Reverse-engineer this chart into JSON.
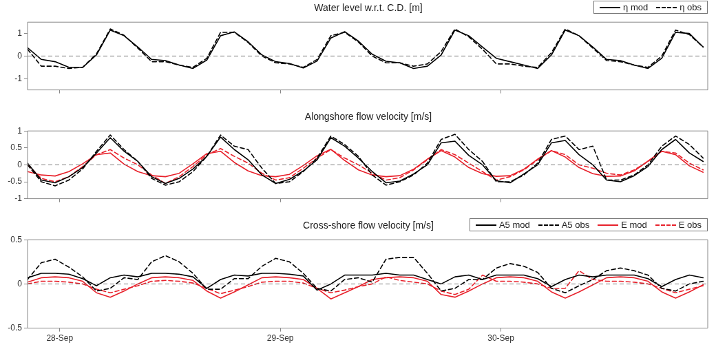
{
  "chart_data": [
    {
      "type": "line",
      "title": "Water level w.r.t. C.D. [m]",
      "legend": "top right",
      "tick_labels": "y",
      "x": [
        "--09-27T20:30",
        "--09-27T22:00",
        "--09-27T23:30",
        "--09-28T01:00",
        "--09-28T02:30",
        "--09-28T04:00",
        "--09-28T05:30",
        "--09-28T07:00",
        "--09-28T08:30",
        "--09-28T10:00",
        "--09-28T11:30",
        "--09-28T13:00",
        "--09-28T14:30",
        "--09-28T16:00",
        "--09-28T17:30",
        "--09-28T19:00",
        "--09-28T20:30",
        "--09-28T22:00",
        "--09-28T23:30",
        "--09-29T01:00",
        "--09-29T02:30",
        "--09-29T04:00",
        "--09-29T05:30",
        "--09-29T07:00",
        "--09-29T08:30",
        "--09-29T10:00",
        "--09-29T11:30",
        "--09-29T13:00",
        "--09-29T14:30",
        "--09-29T16:00",
        "--09-29T17:30",
        "--09-29T19:00",
        "--09-29T20:30",
        "--09-29T22:00",
        "--09-29T23:30",
        "--09-30T01:00",
        "--09-30T02:30",
        "--09-30T04:00",
        "--09-30T05:30",
        "--09-30T07:00",
        "--09-30T08:30",
        "--09-30T10:00",
        "--09-30T11:30",
        "--09-30T13:00",
        "--09-30T14:30",
        "--09-30T16:00",
        "--09-30T17:30",
        "--09-30T19:00",
        "--09-30T20:30",
        "--09-30T22:00"
      ],
      "xlim": [
        "--09-27T20:30",
        "--09-30T22:30"
      ],
      "xticks": [
        {
          "value": "--09-28",
          "label": null
        },
        {
          "value": "--09-29",
          "label": null
        },
        {
          "value": "--09-30",
          "label": null
        }
      ],
      "ylim": [
        -1.5,
        1.5
      ],
      "yticks": [
        -1,
        0,
        1
      ],
      "ref_lines": [
        {
          "axis": "y",
          "value": 0,
          "color": "#808080",
          "line_style": "dashed"
        }
      ],
      "series": [
        {
          "name": "η mod",
          "color": "#000000",
          "line_style": "solid",
          "values": [
            0.37,
            -0.15,
            -0.25,
            -0.5,
            -0.5,
            0.05,
            1.15,
            0.9,
            0.4,
            -0.15,
            -0.2,
            -0.4,
            -0.55,
            -0.18,
            0.9,
            1.07,
            0.63,
            0.05,
            -0.25,
            -0.33,
            -0.53,
            -0.22,
            0.8,
            1.08,
            0.66,
            0.08,
            -0.23,
            -0.3,
            -0.55,
            -0.45,
            0.05,
            1.15,
            0.9,
            0.4,
            -0.1,
            -0.25,
            -0.4,
            -0.55,
            0.05,
            1.15,
            0.9,
            0.4,
            -0.15,
            -0.2,
            -0.4,
            -0.55,
            -0.1,
            1.05,
            1.0,
            0.4
          ]
        },
        {
          "name": "η obs",
          "color": "#000000",
          "line_style": "dashed",
          "values": [
            0.3,
            -0.45,
            -0.45,
            -0.55,
            -0.5,
            0.1,
            1.2,
            0.92,
            0.35,
            -0.25,
            -0.25,
            -0.4,
            -0.5,
            -0.1,
            1.05,
            1.05,
            0.6,
            0.0,
            -0.3,
            -0.35,
            -0.5,
            -0.15,
            0.9,
            1.05,
            0.62,
            0.0,
            -0.3,
            -0.3,
            -0.45,
            -0.35,
            0.2,
            1.2,
            0.85,
            0.3,
            -0.35,
            -0.35,
            -0.45,
            -0.5,
            0.15,
            1.2,
            0.9,
            0.35,
            -0.2,
            -0.25,
            -0.4,
            -0.5,
            0.0,
            1.15,
            0.95,
            0.4
          ]
        }
      ]
    },
    {
      "type": "line",
      "title": "Alongshore flow velocity [m/s]",
      "tick_labels": "y",
      "x": [
        "--09-27T20:30",
        "--09-27T22:00",
        "--09-27T23:30",
        "--09-28T01:00",
        "--09-28T02:30",
        "--09-28T04:00",
        "--09-28T05:30",
        "--09-28T07:00",
        "--09-28T08:30",
        "--09-28T10:00",
        "--09-28T11:30",
        "--09-28T13:00",
        "--09-28T14:30",
        "--09-28T16:00",
        "--09-28T17:30",
        "--09-28T19:00",
        "--09-28T20:30",
        "--09-28T22:00",
        "--09-28T23:30",
        "--09-29T01:00",
        "--09-29T02:30",
        "--09-29T04:00",
        "--09-29T05:30",
        "--09-29T07:00",
        "--09-29T08:30",
        "--09-29T10:00",
        "--09-29T11:30",
        "--09-29T13:00",
        "--09-29T14:30",
        "--09-29T16:00",
        "--09-29T17:30",
        "--09-29T19:00",
        "--09-29T20:30",
        "--09-29T22:00",
        "--09-29T23:30",
        "--09-30T01:00",
        "--09-30T02:30",
        "--09-30T04:00",
        "--09-30T05:30",
        "--09-30T07:00",
        "--09-30T08:30",
        "--09-30T10:00",
        "--09-30T11:30",
        "--09-30T13:00",
        "--09-30T14:30",
        "--09-30T16:00",
        "--09-30T17:30",
        "--09-30T19:00",
        "--09-30T20:30",
        "--09-30T22:00"
      ],
      "xlim": [
        "--09-27T20:30",
        "--09-30T22:30"
      ],
      "xticks": [
        {
          "value": "--09-28",
          "label": null
        },
        {
          "value": "--09-29",
          "label": null
        },
        {
          "value": "--09-30",
          "label": null
        }
      ],
      "ylim": [
        -1,
        1
      ],
      "yticks": [
        -1,
        -0.5,
        0,
        0.5,
        1
      ],
      "ref_lines": [
        {
          "axis": "y",
          "value": 0,
          "color": "#808080",
          "line_style": "dashed"
        }
      ],
      "series": [
        {
          "color": "#000000",
          "line_style": "solid",
          "values": [
            0.05,
            -0.45,
            -0.53,
            -0.35,
            -0.08,
            0.35,
            0.8,
            0.4,
            0.1,
            -0.35,
            -0.55,
            -0.4,
            -0.12,
            0.25,
            0.82,
            0.45,
            0.15,
            -0.3,
            -0.55,
            -0.43,
            -0.18,
            0.15,
            0.8,
            0.55,
            0.2,
            -0.2,
            -0.53,
            -0.48,
            -0.27,
            0,
            0.65,
            0.7,
            0.28,
            0,
            -0.47,
            -0.53,
            -0.27,
            0,
            0.65,
            0.72,
            0.3,
            0,
            -0.45,
            -0.5,
            -0.32,
            -0.05,
            0.45,
            0.75,
            0.35,
            0.1
          ]
        },
        {
          "color": "#000000",
          "line_style": "dashed",
          "values": [
            0.0,
            -0.5,
            -0.62,
            -0.45,
            -0.12,
            0.4,
            0.88,
            0.45,
            0.1,
            -0.4,
            -0.6,
            -0.5,
            -0.2,
            0.25,
            0.88,
            0.55,
            0.45,
            -0.1,
            -0.55,
            -0.5,
            -0.2,
            0.2,
            0.85,
            0.6,
            0.25,
            -0.3,
            -0.6,
            -0.5,
            -0.3,
            0.05,
            0.75,
            0.9,
            0.45,
            0.1,
            -0.5,
            -0.5,
            -0.3,
            0.05,
            0.75,
            0.85,
            0.45,
            0.55,
            -0.45,
            -0.45,
            -0.3,
            0.0,
            0.55,
            0.85,
            0.6,
            0.2
          ]
        },
        {
          "color": "#e8212b",
          "line_style": "solid",
          "values": [
            -0.2,
            -0.3,
            -0.33,
            -0.2,
            0.03,
            0.3,
            0.35,
            0.02,
            -0.2,
            -0.32,
            -0.35,
            -0.25,
            0.03,
            0.33,
            0.4,
            0.07,
            -0.18,
            -0.32,
            -0.35,
            -0.28,
            -0.02,
            0.27,
            0.46,
            0.13,
            -0.15,
            -0.3,
            -0.35,
            -0.32,
            -0.13,
            0.17,
            0.42,
            0.23,
            -0.08,
            -0.26,
            -0.34,
            -0.32,
            -0.13,
            0.17,
            0.42,
            0.23,
            -0.08,
            -0.26,
            -0.34,
            -0.33,
            -0.18,
            0.11,
            0.4,
            0.3,
            -0.03,
            -0.22
          ]
        },
        {
          "color": "#e8212b",
          "line_style": "dashed",
          "values": [
            0.0,
            -0.4,
            -0.5,
            -0.35,
            -0.05,
            0.3,
            0.45,
            0.2,
            0.0,
            -0.3,
            -0.55,
            -0.35,
            -0.05,
            0.3,
            0.48,
            0.25,
            0.05,
            -0.25,
            -0.45,
            -0.38,
            -0.1,
            0.2,
            0.45,
            0.2,
            0.0,
            -0.25,
            -0.45,
            -0.38,
            -0.15,
            0.15,
            0.45,
            0.3,
            0.05,
            -0.2,
            -0.45,
            -0.35,
            -0.15,
            0.15,
            0.42,
            0.3,
            0.0,
            -0.1,
            -0.25,
            -0.3,
            -0.15,
            0.1,
            0.4,
            0.35,
            0.05,
            -0.15
          ]
        }
      ]
    },
    {
      "type": "line",
      "title": "Cross-shore flow velocity [m/s]",
      "legend": "top right",
      "x": [
        "--09-27T20:30",
        "--09-27T22:00",
        "--09-27T23:30",
        "--09-28T01:00",
        "--09-28T02:30",
        "--09-28T04:00",
        "--09-28T05:30",
        "--09-28T07:00",
        "--09-28T08:30",
        "--09-28T10:00",
        "--09-28T11:30",
        "--09-28T13:00",
        "--09-28T14:30",
        "--09-28T16:00",
        "--09-28T17:30",
        "--09-28T19:00",
        "--09-28T20:30",
        "--09-28T22:00",
        "--09-28T23:30",
        "--09-29T01:00",
        "--09-29T02:30",
        "--09-29T04:00",
        "--09-29T05:30",
        "--09-29T07:00",
        "--09-29T08:30",
        "--09-29T10:00",
        "--09-29T11:30",
        "--09-29T13:00",
        "--09-29T14:30",
        "--09-29T16:00",
        "--09-29T17:30",
        "--09-29T19:00",
        "--09-29T20:30",
        "--09-29T22:00",
        "--09-29T23:30",
        "--09-30T01:00",
        "--09-30T02:30",
        "--09-30T04:00",
        "--09-30T05:30",
        "--09-30T07:00",
        "--09-30T08:30",
        "--09-30T10:00",
        "--09-30T11:30",
        "--09-30T13:00",
        "--09-30T14:30",
        "--09-30T16:00",
        "--09-30T17:30",
        "--09-30T19:00",
        "--09-30T20:30",
        "--09-30T22:00"
      ],
      "xlim": [
        "--09-27T20:30",
        "--09-30T22:30"
      ],
      "xticks": [
        {
          "value": "--09-28",
          "label": "28-Sep"
        },
        {
          "value": "--09-29",
          "label": "29-Sep"
        },
        {
          "value": "--09-30",
          "label": "30-Sep"
        }
      ],
      "ylim": [
        -0.5,
        0.5
      ],
      "yticks": [
        -0.5,
        0,
        0.5
      ],
      "ref_lines": [
        {
          "axis": "y",
          "value": 0,
          "color": "#808080",
          "line_style": "dashed"
        }
      ],
      "series": [
        {
          "name": "A5 mod",
          "color": "#000000",
          "line_style": "solid",
          "values": [
            0.07,
            0.12,
            0.12,
            0.11,
            0.06,
            -0.02,
            0.07,
            0.1,
            0.08,
            0.12,
            0.12,
            0.11,
            0.08,
            -0.05,
            0.05,
            0.1,
            0.09,
            0.12,
            0.12,
            0.11,
            0.09,
            -0.07,
            0,
            0.1,
            0.1,
            0.1,
            0.12,
            0.1,
            0.1,
            0.05,
            0,
            0.08,
            0.1,
            0.05,
            0.1,
            0.1,
            0.1,
            0.06,
            -0.03,
            0.05,
            0.1,
            0.08,
            0.1,
            0.1,
            0.1,
            0.06,
            -0.03,
            0.05,
            0.1,
            0.07
          ]
        },
        {
          "name": "A5 obs",
          "color": "#000000",
          "line_style": "dashed",
          "values": [
            0.05,
            0.24,
            0.28,
            0.19,
            0.08,
            -0.08,
            -0.05,
            0.07,
            0.05,
            0.25,
            0.32,
            0.25,
            0.12,
            -0.06,
            -0.06,
            0.06,
            0.06,
            0.2,
            0.29,
            0.25,
            0.12,
            -0.05,
            -0.08,
            0.05,
            0.07,
            0.02,
            0.28,
            0.3,
            0.3,
            0.12,
            -0.08,
            -0.05,
            0.05,
            0.05,
            0.18,
            0.23,
            0.2,
            0.13,
            -0.05,
            -0.1,
            -0.02,
            0.05,
            0.15,
            0.18,
            0.15,
            0.1,
            -0.05,
            -0.08,
            0,
            0.03
          ]
        },
        {
          "name": "E mod",
          "color": "#e8212b",
          "line_style": "solid",
          "values": [
            0.02,
            0.07,
            0.08,
            0.07,
            0.03,
            -0.1,
            -0.15,
            -0.08,
            0,
            0.07,
            0.08,
            0.07,
            0.04,
            -0.08,
            -0.16,
            -0.09,
            -0.01,
            0.07,
            0.08,
            0.07,
            0.05,
            -0.05,
            -0.17,
            -0.1,
            -0.03,
            0.05,
            0.07,
            0.08,
            0.07,
            0.03,
            -0.12,
            -0.15,
            -0.08,
            0,
            0.07,
            0.08,
            0.07,
            0.03,
            -0.09,
            -0.16,
            -0.09,
            -0.01,
            0.07,
            0.08,
            0.07,
            0.03,
            -0.09,
            -0.16,
            -0.09,
            -0.01
          ]
        },
        {
          "name": "E obs",
          "color": "#e8212b",
          "line_style": "dashed",
          "values": [
            0,
            0.03,
            0.03,
            0.02,
            0,
            -0.06,
            -0.1,
            -0.06,
            -0.02,
            0.03,
            0.04,
            0.03,
            0.01,
            -0.05,
            -0.11,
            -0.07,
            -0.03,
            0.02,
            0.03,
            0.03,
            0.01,
            -0.05,
            -0.1,
            -0.07,
            -0.03,
            0,
            0.08,
            0.04,
            0.02,
            0,
            -0.08,
            -0.12,
            -0.06,
            0.1,
            0.03,
            0.03,
            0.02,
            0,
            -0.05,
            -0.05,
            0.15,
            0.05,
            0.03,
            0.03,
            0.02,
            0,
            -0.05,
            -0.1,
            -0.06,
            -0.02
          ]
        }
      ]
    }
  ]
}
